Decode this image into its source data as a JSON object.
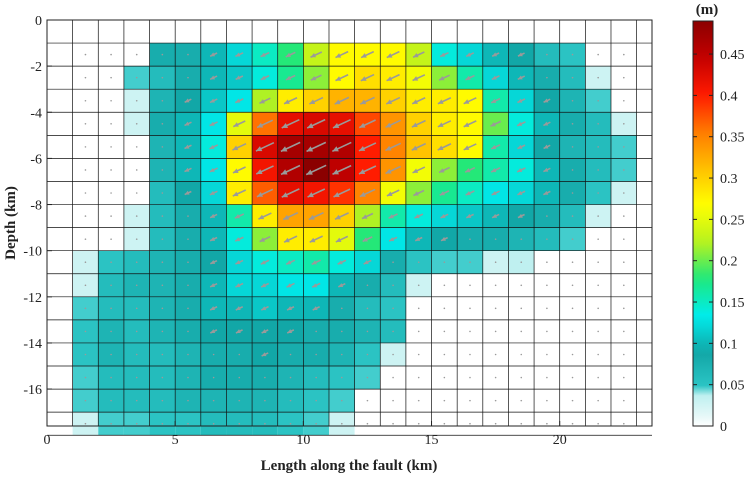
{
  "chart_data": {
    "type": "heatmap",
    "title": "",
    "xlabel": "Length along the fault (km)",
    "ylabel": "Depth (km)",
    "xlim": [
      0,
      23.6
    ],
    "ylim": [
      -17.6,
      0
    ],
    "x_ticks": [
      0,
      5,
      10,
      15,
      20
    ],
    "y_ticks": [
      0,
      -2,
      -4,
      -6,
      -8,
      -10,
      -12,
      -14,
      -16
    ],
    "x_tick_labels": [
      "0",
      "5",
      "10",
      "15",
      "20"
    ],
    "y_tick_labels": [
      "0",
      "-2",
      "-4",
      "-6",
      "-8",
      "-10",
      "-12",
      "-14",
      "-16"
    ],
    "cell_width_km": 1,
    "cell_height_km": 1,
    "rows_top_depth_km": -1,
    "columns_left_km": 1,
    "grid": true,
    "colorbar": {
      "unit_label": "(m)",
      "min": 0,
      "max": 0.49,
      "ticks": [
        0,
        0.05,
        0.1,
        0.15,
        0.2,
        0.25,
        0.3,
        0.35,
        0.4,
        0.45
      ],
      "tick_labels": [
        "0",
        "0.05",
        "0.1",
        "0.15",
        "0.2",
        "0.25",
        "0.3",
        "0.35",
        "0.4",
        "0.45"
      ]
    },
    "slip_grid": [
      [
        0,
        0,
        0,
        0.08,
        0.08,
        0.1,
        0.12,
        0.15,
        0.18,
        0.23,
        0.27,
        0.27,
        0.27,
        0.23,
        0.14,
        0.12,
        0.1,
        0.09,
        0.06,
        0.05,
        0,
        0
      ],
      [
        0,
        0,
        0.04,
        0.06,
        0.08,
        0.1,
        0.11,
        0.14,
        0.17,
        0.21,
        0.27,
        0.29,
        0.28,
        0.26,
        0.21,
        0.16,
        0.12,
        0.1,
        0.08,
        0.06,
        0.03,
        0
      ],
      [
        0,
        0,
        0.03,
        0.07,
        0.09,
        0.11,
        0.13,
        0.22,
        0.28,
        0.3,
        0.32,
        0.32,
        0.3,
        0.28,
        0.28,
        0.27,
        0.16,
        0.12,
        0.09,
        0.07,
        0.04,
        0
      ],
      [
        0,
        0,
        0.03,
        0.08,
        0.1,
        0.13,
        0.25,
        0.36,
        0.42,
        0.43,
        0.42,
        0.38,
        0.34,
        0.3,
        0.28,
        0.27,
        0.2,
        0.14,
        0.1,
        0.08,
        0.06,
        0.03
      ],
      [
        0,
        0,
        0,
        0.07,
        0.1,
        0.14,
        0.3,
        0.43,
        0.47,
        0.47,
        0.46,
        0.4,
        0.35,
        0.31,
        0.29,
        0.27,
        0.16,
        0.12,
        0.09,
        0.07,
        0.06,
        0.04
      ],
      [
        0,
        0,
        0,
        0.07,
        0.1,
        0.13,
        0.27,
        0.41,
        0.46,
        0.49,
        0.45,
        0.4,
        0.34,
        0.26,
        0.21,
        0.18,
        0.16,
        0.14,
        0.1,
        0.08,
        0.06,
        0.04
      ],
      [
        0,
        0,
        0,
        0.06,
        0.09,
        0.12,
        0.28,
        0.37,
        0.42,
        0.41,
        0.39,
        0.35,
        0.26,
        0.21,
        0.17,
        0.15,
        0.13,
        0.12,
        0.1,
        0.08,
        0.05,
        0.03
      ],
      [
        0,
        0,
        0.03,
        0.06,
        0.08,
        0.1,
        0.16,
        0.28,
        0.33,
        0.33,
        0.3,
        0.22,
        0.16,
        0.14,
        0.12,
        0.11,
        0.1,
        0.09,
        0.08,
        0.06,
        0.03,
        0
      ],
      [
        0,
        0,
        0.03,
        0.06,
        0.08,
        0.1,
        0.14,
        0.21,
        0.28,
        0.28,
        0.25,
        0.18,
        0.13,
        0.1,
        0.09,
        0.08,
        0.08,
        0.07,
        0.06,
        0.04,
        0,
        0
      ],
      [
        0.03,
        0.05,
        0.06,
        0.07,
        0.08,
        0.09,
        0.12,
        0.14,
        0.15,
        0.16,
        0.14,
        0.12,
        0.08,
        0.05,
        0.04,
        0.04,
        0.03,
        0.02,
        0,
        0,
        0,
        0
      ],
      [
        0.03,
        0.06,
        0.07,
        0.07,
        0.08,
        0.1,
        0.12,
        0.12,
        0.13,
        0.13,
        0.1,
        0.08,
        0.06,
        0.03,
        0,
        0,
        0,
        0,
        0,
        0,
        0,
        0
      ],
      [
        0.04,
        0.06,
        0.06,
        0.07,
        0.08,
        0.1,
        0.1,
        0.11,
        0.1,
        0.1,
        0.08,
        0.06,
        0.05,
        0,
        0,
        0,
        0,
        0,
        0,
        0,
        0,
        0
      ],
      [
        0.05,
        0.07,
        0.06,
        0.07,
        0.08,
        0.09,
        0.09,
        0.09,
        0.09,
        0.08,
        0.08,
        0.07,
        0.06,
        0,
        0,
        0,
        0,
        0,
        0,
        0,
        0,
        0
      ],
      [
        0.05,
        0.07,
        0.06,
        0.06,
        0.07,
        0.08,
        0.08,
        0.09,
        0.08,
        0.08,
        0.07,
        0.05,
        0.03,
        0,
        0,
        0,
        0,
        0,
        0,
        0,
        0,
        0
      ],
      [
        0.04,
        0.06,
        0.06,
        0.06,
        0.07,
        0.08,
        0.08,
        0.08,
        0.07,
        0.06,
        0.05,
        0.04,
        0,
        0,
        0,
        0,
        0,
        0,
        0,
        0,
        0,
        0
      ],
      [
        0.04,
        0.06,
        0.06,
        0.06,
        0.07,
        0.07,
        0.07,
        0.07,
        0.06,
        0.05,
        0.04,
        0,
        0,
        0,
        0,
        0,
        0,
        0,
        0,
        0,
        0,
        0
      ],
      [
        0.03,
        0.04,
        0.04,
        0.05,
        0.05,
        0.06,
        0.06,
        0.06,
        0.05,
        0.04,
        0.03,
        0,
        0,
        0,
        0,
        0,
        0,
        0,
        0,
        0,
        0,
        0
      ]
    ],
    "slip_vector_color": "#9a9a9a",
    "slip_vector_direction_deg": 205,
    "colormap": [
      "#ffffff",
      "#2ec7c7",
      "#12a6a6",
      "#00ecec",
      "#1ee87c",
      "#b8f21e",
      "#ffff00",
      "#ffc000",
      "#ff7a00",
      "#ff1a00",
      "#c40000",
      "#8b0000"
    ]
  }
}
